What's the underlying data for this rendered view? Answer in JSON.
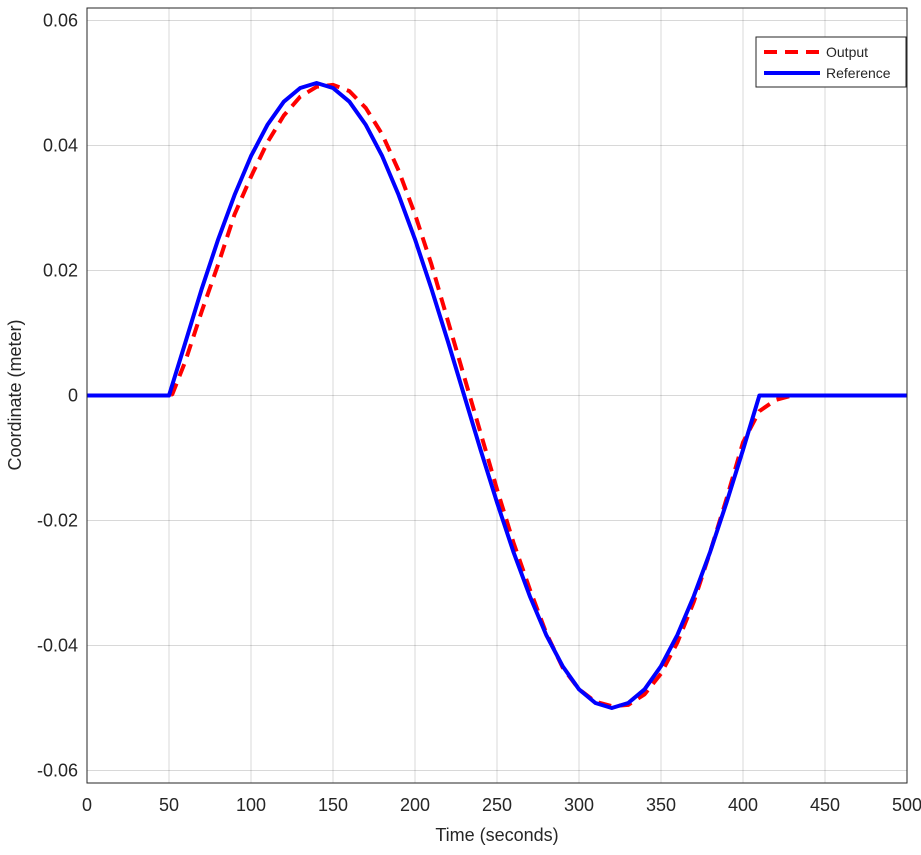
{
  "chart_data": {
    "type": "line",
    "xlabel": "Time (seconds)",
    "ylabel": "Coordinate (meter)",
    "xlim": [
      0,
      500
    ],
    "ylim": [
      -0.062,
      0.062
    ],
    "xticks": [
      0,
      50,
      100,
      150,
      200,
      250,
      300,
      350,
      400,
      450,
      500
    ],
    "xtick_labels": [
      "0",
      "50",
      "100",
      "150",
      "200",
      "250",
      "300",
      "350",
      "400",
      "450",
      "500"
    ],
    "yticks": [
      0.06,
      0.04,
      0.02,
      0,
      -0.02,
      -0.04,
      -0.06
    ],
    "ytick_labels": [
      "0.06",
      "0.04",
      "0.02",
      "0",
      "-0.02",
      "-0.04",
      "-0.06"
    ],
    "grid": true,
    "legend_position": "top-right",
    "series": [
      {
        "name": "Output",
        "color": "#ff0000",
        "style": "dashed",
        "x": [
          0,
          50,
          52,
          60,
          70,
          80,
          90,
          100,
          110,
          120,
          130,
          140,
          150,
          160,
          170,
          180,
          190,
          200,
          210,
          220,
          230,
          240,
          250,
          260,
          270,
          280,
          290,
          300,
          310,
          320,
          330,
          340,
          350,
          360,
          370,
          380,
          390,
          400,
          410,
          420,
          430,
          440,
          500
        ],
        "y": [
          0,
          0,
          0.0002,
          0.0055,
          0.0135,
          0.021,
          0.029,
          0.035,
          0.0405,
          0.0448,
          0.0478,
          0.0494,
          0.0497,
          0.0487,
          0.046,
          0.0418,
          0.036,
          0.029,
          0.021,
          0.012,
          0.003,
          -0.006,
          -0.015,
          -0.0235,
          -0.031,
          -0.038,
          -0.0435,
          -0.047,
          -0.049,
          -0.0497,
          -0.0495,
          -0.0478,
          -0.0445,
          -0.0395,
          -0.033,
          -0.025,
          -0.0165,
          -0.0075,
          -0.0025,
          -0.0007,
          0,
          0,
          0
        ]
      },
      {
        "name": "Reference",
        "color": "#0000ff",
        "style": "solid",
        "x": [
          0,
          50,
          60,
          70,
          80,
          90,
          100,
          110,
          120,
          130,
          140,
          150,
          160,
          170,
          180,
          190,
          200,
          210,
          220,
          230,
          240,
          250,
          260,
          270,
          280,
          290,
          300,
          310,
          320,
          330,
          340,
          350,
          360,
          370,
          380,
          390,
          400,
          410,
          500
        ],
        "y": [
          0,
          0,
          0.0085,
          0.0171,
          0.025,
          0.0321,
          0.0383,
          0.0433,
          0.047,
          0.0492,
          0.05,
          0.0492,
          0.047,
          0.0433,
          0.0383,
          0.0321,
          0.025,
          0.0171,
          0.0087,
          0,
          -0.0087,
          -0.0171,
          -0.025,
          -0.0321,
          -0.0383,
          -0.0433,
          -0.047,
          -0.0492,
          -0.05,
          -0.0492,
          -0.047,
          -0.0433,
          -0.0383,
          -0.0321,
          -0.025,
          -0.0171,
          -0.0087,
          0,
          0
        ]
      }
    ]
  }
}
